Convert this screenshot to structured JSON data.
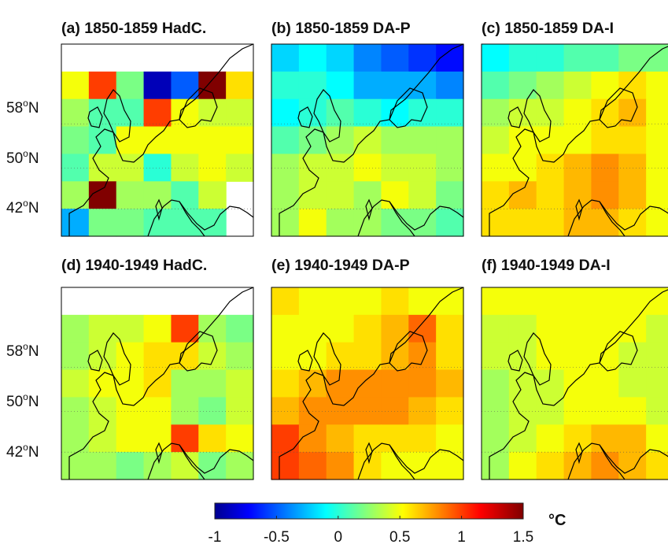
{
  "chart_data": [
    {
      "type": "heatmap",
      "title": "(a) 1850-1859 HadC.",
      "ylabel_ticks": [
        "58",
        "50",
        "42"
      ],
      "lat_suffix": "N",
      "lat_degree": "o",
      "grid": [
        [
          null,
          null,
          null,
          null,
          null,
          null,
          null
        ],
        [
          0.5,
          1.0,
          0.2,
          -0.9,
          -0.5,
          1.5,
          0.6
        ],
        [
          0.3,
          0.1,
          0.1,
          1.0,
          0.5,
          0.4,
          0.4
        ],
        [
          0.2,
          0.1,
          0.5,
          0.5,
          0.5,
          0.5,
          0.5
        ],
        [
          0.1,
          0.4,
          0.4,
          0.0,
          0.4,
          0.5,
          0.4
        ],
        [
          0.3,
          1.5,
          0.3,
          0.3,
          0.1,
          0.4,
          null
        ],
        [
          -0.3,
          0.2,
          0.2,
          0.1,
          0.1,
          0.1,
          null
        ]
      ]
    },
    {
      "type": "heatmap",
      "title": "(b) 1850-1859 DA-P",
      "grid": [
        [
          -0.2,
          -0.1,
          -0.2,
          -0.4,
          -0.5,
          -0.6,
          -0.7
        ],
        [
          0.0,
          0.0,
          -0.1,
          -0.3,
          -0.3,
          -0.3,
          -0.4
        ],
        [
          -0.1,
          0.0,
          0.1,
          0.0,
          -0.1,
          0.0,
          0.0
        ],
        [
          0.1,
          0.2,
          0.3,
          0.4,
          0.3,
          0.3,
          0.3
        ],
        [
          0.3,
          0.4,
          0.4,
          0.5,
          0.4,
          0.4,
          0.3
        ],
        [
          0.3,
          0.4,
          0.4,
          0.3,
          0.5,
          0.4,
          0.2
        ],
        [
          0.3,
          0.5,
          0.3,
          0.3,
          0.2,
          0.2,
          0.1
        ]
      ]
    },
    {
      "type": "heatmap",
      "title": "(c) 1850-1859 DA-I",
      "grid": [
        [
          -0.1,
          0.0,
          0.0,
          0.1,
          0.1,
          0.2,
          0.2
        ],
        [
          0.1,
          0.2,
          0.3,
          0.4,
          0.5,
          0.6,
          0.5
        ],
        [
          0.3,
          0.4,
          0.4,
          0.5,
          0.6,
          0.7,
          0.5
        ],
        [
          0.4,
          0.5,
          0.5,
          0.5,
          0.6,
          0.6,
          0.5
        ],
        [
          0.5,
          0.5,
          0.6,
          0.7,
          0.8,
          0.7,
          0.5
        ],
        [
          0.6,
          0.7,
          0.6,
          0.7,
          0.8,
          0.7,
          0.5
        ],
        [
          0.6,
          0.6,
          0.6,
          0.7,
          0.7,
          0.6,
          0.5
        ]
      ]
    },
    {
      "type": "heatmap",
      "title": "(d) 1940-1949 HadC.",
      "ylabel_ticks": [
        "58",
        "50",
        "42"
      ],
      "lat_suffix": "N",
      "lat_degree": "o",
      "grid": [
        [
          null,
          null,
          null,
          null,
          null,
          null,
          null
        ],
        [
          0.3,
          0.4,
          0.4,
          0.5,
          1.0,
          0.3,
          0.2
        ],
        [
          0.3,
          0.4,
          0.5,
          0.6,
          0.6,
          0.4,
          0.3
        ],
        [
          0.4,
          0.5,
          0.5,
          0.6,
          0.3,
          0.3,
          0.4
        ],
        [
          0.3,
          0.4,
          0.5,
          0.5,
          0.3,
          0.2,
          0.4
        ],
        [
          0.3,
          0.4,
          0.5,
          0.5,
          1.0,
          0.6,
          0.5
        ],
        [
          0.3,
          0.3,
          0.2,
          0.3,
          0.4,
          0.2,
          0.3
        ]
      ]
    },
    {
      "type": "heatmap",
      "title": "(e) 1940-1949 DA-P",
      "grid": [
        [
          0.6,
          0.5,
          0.5,
          0.5,
          0.6,
          0.5,
          0.5
        ],
        [
          0.5,
          0.5,
          0.5,
          0.6,
          0.7,
          0.9,
          0.6
        ],
        [
          0.5,
          0.5,
          0.6,
          0.6,
          0.7,
          0.8,
          0.6
        ],
        [
          0.6,
          0.7,
          0.8,
          0.8,
          0.8,
          0.8,
          0.7
        ],
        [
          0.7,
          0.8,
          0.8,
          0.8,
          0.8,
          0.7,
          0.6
        ],
        [
          1.0,
          0.8,
          0.7,
          0.6,
          0.6,
          0.6,
          0.5
        ],
        [
          1.0,
          0.9,
          0.8,
          0.6,
          0.5,
          0.5,
          0.5
        ]
      ]
    },
    {
      "type": "heatmap",
      "title": "(f) 1940-1949 DA-I",
      "grid": [
        [
          0.5,
          0.5,
          0.5,
          0.5,
          0.5,
          0.5,
          0.5
        ],
        [
          0.4,
          0.4,
          0.5,
          0.5,
          0.5,
          0.5,
          0.4
        ],
        [
          0.4,
          0.4,
          0.5,
          0.5,
          0.5,
          0.4,
          0.4
        ],
        [
          0.3,
          0.4,
          0.4,
          0.5,
          0.5,
          0.4,
          0.4
        ],
        [
          0.3,
          0.4,
          0.4,
          0.5,
          0.5,
          0.5,
          0.4
        ],
        [
          0.3,
          0.4,
          0.5,
          0.6,
          0.7,
          0.7,
          0.5
        ],
        [
          0.3,
          0.5,
          0.6,
          0.7,
          0.8,
          0.7,
          0.6
        ]
      ]
    }
  ],
  "colorbar": {
    "min": -1,
    "max": 1.5,
    "ticks": [
      "-1",
      "-0.5",
      "0",
      "0.5",
      "1",
      "1.5"
    ],
    "tick_values": [
      -1,
      -0.5,
      0,
      0.5,
      1,
      1.5
    ],
    "unit": "°C",
    "colormap": "jet"
  }
}
